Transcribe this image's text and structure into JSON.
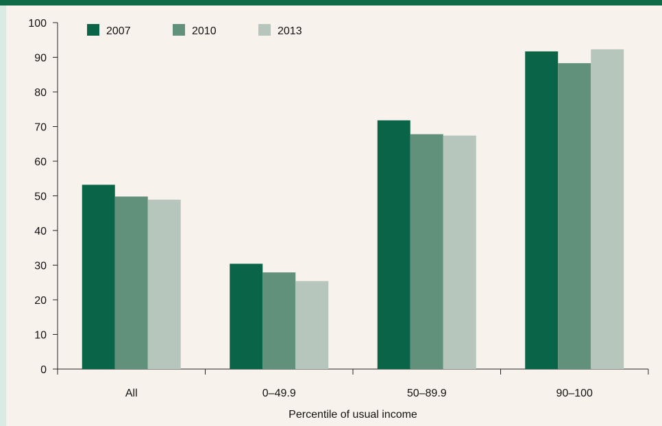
{
  "chart_data": {
    "type": "bar",
    "title": "",
    "xlabel": "Percentile of usual income",
    "ylabel": "",
    "ylim": [
      0,
      100
    ],
    "yticks": [
      0,
      10,
      20,
      30,
      40,
      50,
      60,
      70,
      80,
      90,
      100
    ],
    "categories": [
      "All",
      "0–49.9",
      "50–89.9",
      "90–100"
    ],
    "series": [
      {
        "name": "2007",
        "color": "#0a6447",
        "values": [
          53.2,
          30.4,
          71.8,
          91.7
        ]
      },
      {
        "name": "2010",
        "color": "#62917b",
        "values": [
          49.8,
          27.9,
          67.8,
          88.3
        ]
      },
      {
        "name": "2013",
        "color": "#b7c6bc",
        "values": [
          48.9,
          25.4,
          67.4,
          92.3
        ]
      }
    ],
    "grid": false,
    "legend": "top-left"
  }
}
